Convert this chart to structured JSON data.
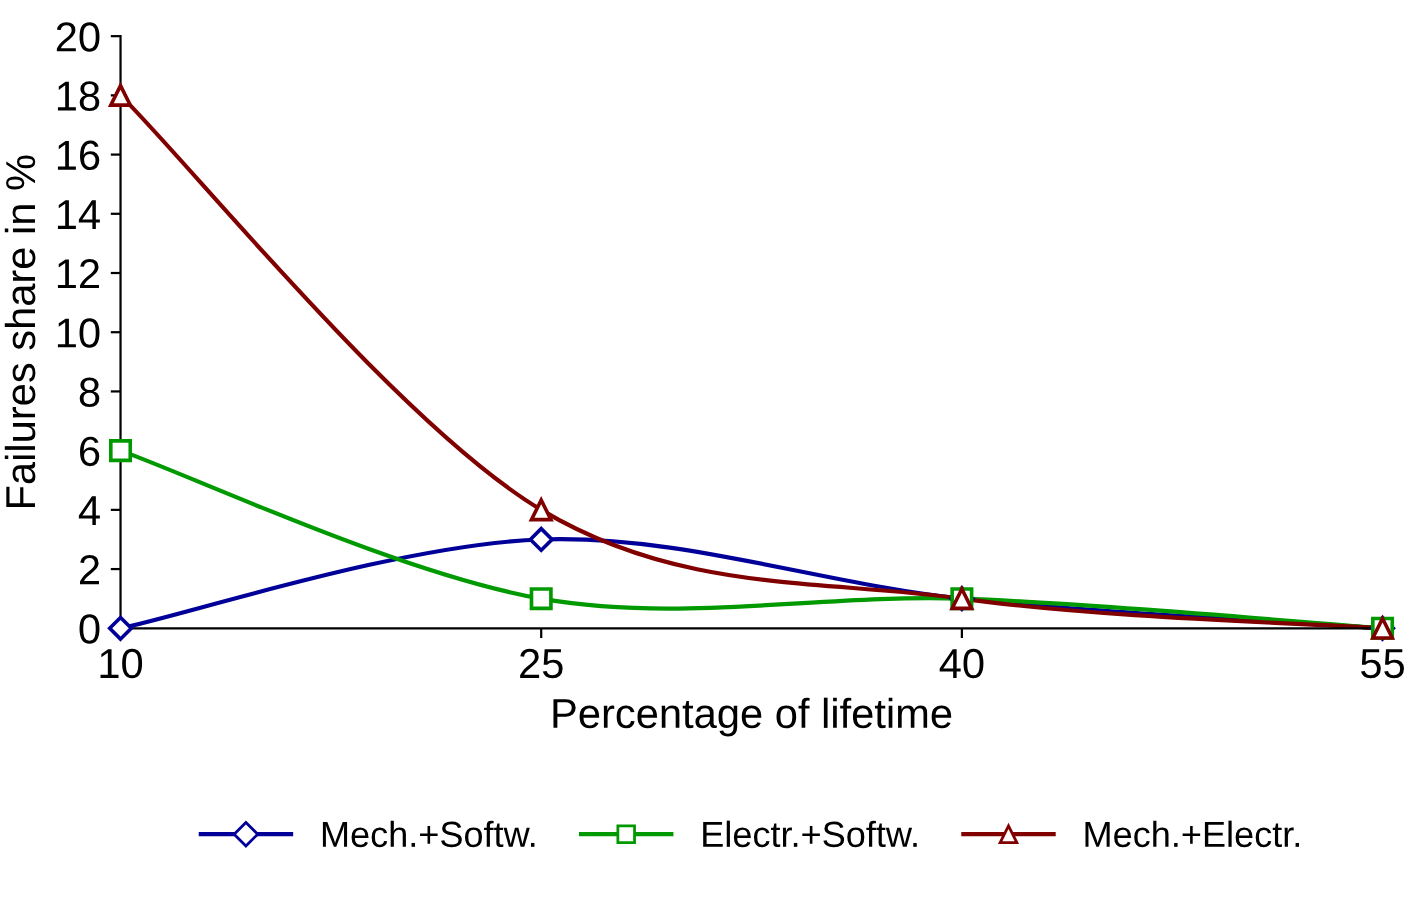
{
  "chart_data": {
    "type": "line",
    "xlabel": "Percentage of lifetime",
    "ylabel": "Failures share in %",
    "x": [
      10,
      25,
      40,
      55
    ],
    "series": [
      {
        "name": "Mech.+Softw.",
        "color": "#000099",
        "marker": "diamond",
        "values": [
          0,
          3,
          1,
          0
        ]
      },
      {
        "name": "Electr.+Softw.",
        "color": "#009900",
        "marker": "square",
        "values": [
          6,
          1,
          1,
          0
        ]
      },
      {
        "name": "Mech.+Electr.",
        "color": "#800000",
        "marker": "triangle",
        "values": [
          18,
          4,
          1,
          0
        ]
      }
    ],
    "xlim": [
      10,
      55
    ],
    "xticks": [
      10,
      25,
      40,
      55
    ],
    "ylim": [
      0,
      20
    ],
    "yticks": [
      0,
      2,
      4,
      6,
      8,
      10,
      12,
      14,
      16,
      18,
      20
    ],
    "grid": false,
    "legend": "bottom",
    "line_style": "solid"
  }
}
